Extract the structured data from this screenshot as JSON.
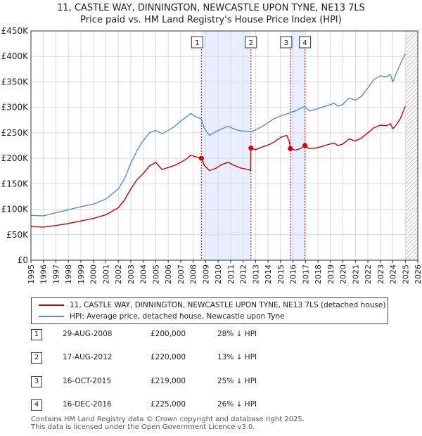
{
  "title": {
    "line1": "11, CASTLE WAY, DINNINGTON, NEWCASTLE UPON TYNE, NE13 7LS",
    "line2": "Price paid vs. HM Land Registry's House Price Index (HPI)"
  },
  "colors": {
    "property": "#cc0000",
    "hpi": "#5b8bd0",
    "shade": "#e6eeff",
    "grid": "#d9d9d9"
  },
  "chart_data": {
    "type": "line",
    "title": "Price paid vs. HM Land Registry's House Price Index (HPI)",
    "xlabel": "",
    "ylabel": "",
    "xlim": [
      1995,
      2026
    ],
    "ylim": [
      0,
      450000
    ],
    "x_ticks": [
      "1995",
      "1996",
      "1997",
      "1998",
      "1999",
      "2000",
      "2001",
      "2002",
      "2003",
      "2004",
      "2005",
      "2006",
      "2007",
      "2008",
      "2009",
      "2010",
      "2011",
      "2012",
      "2013",
      "2014",
      "2015",
      "2016",
      "2017",
      "2018",
      "2019",
      "2020",
      "2021",
      "2022",
      "2023",
      "2024",
      "2025",
      "2026"
    ],
    "y_ticks": [
      {
        "value": 0,
        "label": "£0"
      },
      {
        "value": 50000,
        "label": "£50K"
      },
      {
        "value": 100000,
        "label": "£100K"
      },
      {
        "value": 150000,
        "label": "£150K"
      },
      {
        "value": 200000,
        "label": "£200K"
      },
      {
        "value": 250000,
        "label": "£250K"
      },
      {
        "value": 300000,
        "label": "£300K"
      },
      {
        "value": 350000,
        "label": "£350K"
      },
      {
        "value": 400000,
        "label": "£400K"
      },
      {
        "value": 450000,
        "label": "£450K"
      }
    ],
    "shaded_ranges": [
      [
        2008.66,
        2012.63
      ],
      [
        2015.79,
        2016.96
      ]
    ],
    "hatched_from": 2025.0,
    "series": [
      {
        "name": "11, CASTLE WAY, DINNINGTON, NEWCASTLE UPON TYNE, NE13 7LS (detached house)",
        "color": "#cc0000",
        "points": [
          [
            1995.0,
            66000
          ],
          [
            1996.0,
            65000
          ],
          [
            1997.0,
            68000
          ],
          [
            1998.0,
            72000
          ],
          [
            1999.0,
            77000
          ],
          [
            2000.0,
            82000
          ],
          [
            2001.0,
            89000
          ],
          [
            2002.0,
            103000
          ],
          [
            2002.5,
            118000
          ],
          [
            2003.0,
            140000
          ],
          [
            2003.5,
            158000
          ],
          [
            2004.0,
            170000
          ],
          [
            2004.5,
            185000
          ],
          [
            2005.0,
            192000
          ],
          [
            2005.5,
            178000
          ],
          [
            2006.0,
            182000
          ],
          [
            2006.5,
            186000
          ],
          [
            2007.0,
            192000
          ],
          [
            2007.5,
            199000
          ],
          [
            2007.8,
            206000
          ],
          [
            2008.2,
            203000
          ],
          [
            2008.66,
            200000
          ],
          [
            2008.9,
            186000
          ],
          [
            2009.3,
            176000
          ],
          [
            2009.8,
            180000
          ],
          [
            2010.3,
            188000
          ],
          [
            2010.8,
            192000
          ],
          [
            2011.3,
            186000
          ],
          [
            2011.8,
            181000
          ],
          [
            2012.4,
            178000
          ],
          [
            2012.6,
            176000
          ],
          [
            2012.63,
            220000
          ],
          [
            2013.0,
            217000
          ],
          [
            2013.5,
            222000
          ],
          [
            2014.0,
            226000
          ],
          [
            2014.5,
            232000
          ],
          [
            2015.0,
            241000
          ],
          [
            2015.5,
            245000
          ],
          [
            2015.7,
            233000
          ],
          [
            2015.79,
            219000
          ],
          [
            2016.2,
            216000
          ],
          [
            2016.6,
            219000
          ],
          [
            2016.96,
            225000
          ],
          [
            2017.3,
            219000
          ],
          [
            2017.8,
            220000
          ],
          [
            2018.3,
            223000
          ],
          [
            2018.8,
            227000
          ],
          [
            2019.3,
            230000
          ],
          [
            2019.6,
            225000
          ],
          [
            2020.0,
            228000
          ],
          [
            2020.5,
            238000
          ],
          [
            2021.0,
            234000
          ],
          [
            2021.5,
            240000
          ],
          [
            2022.0,
            250000
          ],
          [
            2022.5,
            260000
          ],
          [
            2023.0,
            265000
          ],
          [
            2023.5,
            264000
          ],
          [
            2023.8,
            268000
          ],
          [
            2024.0,
            258000
          ],
          [
            2024.3,
            266000
          ],
          [
            2024.6,
            278000
          ],
          [
            2024.9,
            296000
          ],
          [
            2025.0,
            302000
          ]
        ]
      },
      {
        "name": "HPI: Average price, detached house, Newcastle upon Tyne",
        "color": "#5b8bd0",
        "points": [
          [
            1995.0,
            88000
          ],
          [
            1996.0,
            87000
          ],
          [
            1997.0,
            93000
          ],
          [
            1998.0,
            99000
          ],
          [
            1999.0,
            105000
          ],
          [
            2000.0,
            110000
          ],
          [
            2001.0,
            120000
          ],
          [
            2002.0,
            140000
          ],
          [
            2002.5,
            160000
          ],
          [
            2003.0,
            190000
          ],
          [
            2003.5,
            215000
          ],
          [
            2004.0,
            235000
          ],
          [
            2004.5,
            250000
          ],
          [
            2005.0,
            255000
          ],
          [
            2005.5,
            248000
          ],
          [
            2006.0,
            255000
          ],
          [
            2006.5,
            262000
          ],
          [
            2007.0,
            273000
          ],
          [
            2007.5,
            282000
          ],
          [
            2007.8,
            288000
          ],
          [
            2008.2,
            282000
          ],
          [
            2008.66,
            277000
          ],
          [
            2008.9,
            258000
          ],
          [
            2009.3,
            245000
          ],
          [
            2009.8,
            252000
          ],
          [
            2010.3,
            258000
          ],
          [
            2010.8,
            263000
          ],
          [
            2011.3,
            257000
          ],
          [
            2011.8,
            254000
          ],
          [
            2012.3,
            253000
          ],
          [
            2012.63,
            252000
          ],
          [
            2013.0,
            256000
          ],
          [
            2013.5,
            262000
          ],
          [
            2014.0,
            270000
          ],
          [
            2014.5,
            278000
          ],
          [
            2015.0,
            283000
          ],
          [
            2015.5,
            287000
          ],
          [
            2015.79,
            290000
          ],
          [
            2016.2,
            293000
          ],
          [
            2016.6,
            298000
          ],
          [
            2016.96,
            302000
          ],
          [
            2017.3,
            293000
          ],
          [
            2017.8,
            296000
          ],
          [
            2018.3,
            300000
          ],
          [
            2018.8,
            304000
          ],
          [
            2019.3,
            308000
          ],
          [
            2019.6,
            302000
          ],
          [
            2020.0,
            306000
          ],
          [
            2020.5,
            318000
          ],
          [
            2021.0,
            314000
          ],
          [
            2021.5,
            322000
          ],
          [
            2022.0,
            338000
          ],
          [
            2022.5,
            355000
          ],
          [
            2023.0,
            362000
          ],
          [
            2023.5,
            360000
          ],
          [
            2023.8,
            365000
          ],
          [
            2024.0,
            350000
          ],
          [
            2024.3,
            368000
          ],
          [
            2024.6,
            385000
          ],
          [
            2024.9,
            400000
          ],
          [
            2025.0,
            405000
          ]
        ]
      }
    ],
    "sales": [
      {
        "label": "1",
        "date": "29-AUG-2008",
        "x": 2008.66,
        "price": 200000,
        "price_label": "£200,000",
        "hpi": "28% ↓ HPI"
      },
      {
        "label": "2",
        "date": "17-AUG-2012",
        "x": 2012.63,
        "price": 220000,
        "price_label": "£220,000",
        "hpi": "13% ↓ HPI"
      },
      {
        "label": "3",
        "date": "16-OCT-2015",
        "x": 2015.79,
        "price": 219000,
        "price_label": "£219,000",
        "hpi": "25% ↓ HPI"
      },
      {
        "label": "4",
        "date": "16-DEC-2016",
        "x": 2016.96,
        "price": 225000,
        "price_label": "£225,000",
        "hpi": "26% ↓ HPI"
      }
    ]
  },
  "legend": {
    "property": "11, CASTLE WAY, DINNINGTON, NEWCASTLE UPON TYNE, NE13 7LS (detached house)",
    "hpi": "HPI: Average price, detached house, Newcastle upon Tyne"
  },
  "footer": {
    "line1": "Contains HM Land Registry data © Crown copyright and database right 2025.",
    "line2": "This data is licensed under the Open Government Licence v3.0."
  }
}
